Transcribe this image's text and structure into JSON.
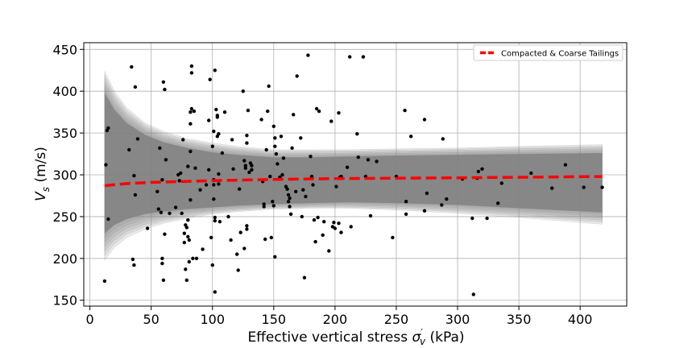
{
  "chart_data": {
    "type": "scatter",
    "title": "",
    "xlabel": "Effective vertical stress σ′v (kPa)",
    "xlabel_parts": {
      "prefix": "Effective vertical stress ",
      "symbol": "σ",
      "superscript": "′",
      "subscript": "v",
      "suffix": " (kPa)"
    },
    "ylabel": "Vs (m/s)",
    "ylabel_parts": {
      "symbol": "V",
      "subscript": "s",
      "suffix": " (m/s)"
    },
    "xlim": [
      -5,
      438
    ],
    "ylim": [
      143,
      458
    ],
    "xticks": [
      0,
      50,
      100,
      150,
      200,
      250,
      300,
      350,
      400
    ],
    "yticks": [
      150,
      200,
      250,
      300,
      350,
      400,
      450
    ],
    "grid": true,
    "legend": {
      "position": "top-right",
      "entries": [
        {
          "label": "Compacted & Coarse Tailings",
          "color": "#ff0000",
          "style": "dashed"
        }
      ]
    },
    "colors": {
      "points": "#000000",
      "band": "#808080",
      "mean": "#ff0000",
      "grid": "#b0b0b0"
    },
    "mean_curve": {
      "x": [
        12,
        30,
        50,
        100,
        150,
        200,
        250,
        300,
        350,
        418
      ],
      "y": [
        287,
        289.5,
        291,
        293,
        294.5,
        295.5,
        296,
        296.5,
        297,
        298
      ]
    },
    "band": {
      "x": [
        12,
        20,
        30,
        45,
        60,
        80,
        100,
        120,
        150,
        180,
        210,
        250,
        300,
        350,
        418
      ],
      "upper_outer": [
        424,
        400,
        380,
        362,
        352,
        343,
        338,
        334,
        330,
        330,
        330,
        331,
        332,
        334,
        336
      ],
      "upper_inner": [
        398,
        378,
        362,
        348,
        339,
        332,
        327,
        324,
        321,
        321,
        322,
        323,
        324,
        325,
        326
      ],
      "lower_inner": [
        230,
        240,
        247,
        253,
        256,
        259,
        261,
        263,
        265,
        266,
        267,
        266,
        264,
        260,
        255
      ],
      "lower_outer": [
        198,
        213,
        225,
        235,
        242,
        248,
        253,
        256,
        259,
        260,
        260,
        258,
        254,
        249,
        241
      ]
    },
    "points": [
      [
        12,
        173
      ],
      [
        13,
        312
      ],
      [
        14,
        353
      ],
      [
        15,
        356
      ],
      [
        15,
        247
      ],
      [
        34,
        429
      ],
      [
        35,
        199
      ],
      [
        36,
        192
      ],
      [
        37,
        405
      ],
      [
        39,
        343
      ],
      [
        32,
        330
      ],
      [
        36,
        299
      ],
      [
        37,
        276
      ],
      [
        47,
        236
      ],
      [
        55,
        280
      ],
      [
        56,
        259
      ],
      [
        57,
        332
      ],
      [
        58,
        255
      ],
      [
        59,
        294
      ],
      [
        59,
        200
      ],
      [
        59,
        194
      ],
      [
        60,
        174
      ],
      [
        60,
        411
      ],
      [
        61,
        402
      ],
      [
        61,
        229
      ],
      [
        62,
        318
      ],
      [
        65,
        254
      ],
      [
        70,
        261
      ],
      [
        72,
        300
      ],
      [
        73,
        293
      ],
      [
        74,
        302
      ],
      [
        75,
        254
      ],
      [
        76,
        342
      ],
      [
        77,
        230
      ],
      [
        77,
        219
      ],
      [
        78,
        240
      ],
      [
        78,
        187
      ],
      [
        79,
        237
      ],
      [
        79,
        174
      ],
      [
        80,
        226
      ],
      [
        80,
        310
      ],
      [
        80,
        246
      ],
      [
        81,
        196
      ],
      [
        81,
        222
      ],
      [
        82,
        270
      ],
      [
        82,
        375
      ],
      [
        82,
        361
      ],
      [
        82,
        328
      ],
      [
        83,
        430
      ],
      [
        83,
        422
      ],
      [
        83,
        379
      ],
      [
        84,
        200
      ],
      [
        85,
        376
      ],
      [
        86,
        308
      ],
      [
        87,
        200
      ],
      [
        90,
        282
      ],
      [
        92,
        211
      ],
      [
        95,
        288
      ],
      [
        97,
        306
      ],
      [
        97,
        365
      ],
      [
        98,
        414
      ],
      [
        99,
        225
      ],
      [
        100,
        192
      ],
      [
        100,
        334
      ],
      [
        101,
        294
      ],
      [
        101,
        271
      ],
      [
        101,
        352
      ],
      [
        101,
        288
      ],
      [
        102,
        425
      ],
      [
        102,
        249
      ],
      [
        102,
        245
      ],
      [
        102,
        160
      ],
      [
        103,
        378
      ],
      [
        104,
        371
      ],
      [
        104,
        369
      ],
      [
        104,
        346
      ],
      [
        105,
        349
      ],
      [
        105,
        301
      ],
      [
        105,
        289
      ],
      [
        106,
        244
      ],
      [
        108,
        326
      ],
      [
        110,
        375
      ],
      [
        113,
        250
      ],
      [
        115,
        222
      ],
      [
        116,
        342
      ],
      [
        117,
        307
      ],
      [
        120,
        205
      ],
      [
        121,
        186
      ],
      [
        122,
        283
      ],
      [
        123,
        231
      ],
      [
        125,
        400
      ],
      [
        126,
        317
      ],
      [
        126,
        212
      ],
      [
        127,
        311
      ],
      [
        127,
        308
      ],
      [
        128,
        347
      ],
      [
        128,
        338
      ],
      [
        128,
        239
      ],
      [
        128,
        235
      ],
      [
        129,
        377
      ],
      [
        130,
        303
      ],
      [
        131,
        314
      ],
      [
        132,
        311
      ],
      [
        132,
        306
      ],
      [
        140,
        366
      ],
      [
        141,
        292
      ],
      [
        142,
        265
      ],
      [
        142,
        262
      ],
      [
        143,
        223
      ],
      [
        144,
        330
      ],
      [
        145,
        376
      ],
      [
        146,
        406
      ],
      [
        147,
        298
      ],
      [
        148,
        225
      ],
      [
        149,
        268
      ],
      [
        150,
        263
      ],
      [
        150,
        358
      ],
      [
        151,
        202
      ],
      [
        151,
        344
      ],
      [
        151,
        334
      ],
      [
        152,
        325
      ],
      [
        153,
        313
      ],
      [
        155,
        297
      ],
      [
        156,
        346
      ],
      [
        157,
        300
      ],
      [
        158,
        320
      ],
      [
        160,
        286
      ],
      [
        161,
        283
      ],
      [
        162,
        276
      ],
      [
        162,
        268
      ],
      [
        163,
        272
      ],
      [
        163,
        262
      ],
      [
        164,
        253
      ],
      [
        165,
        332
      ],
      [
        166,
        372
      ],
      [
        168,
        280
      ],
      [
        169,
        418
      ],
      [
        172,
        344
      ],
      [
        173,
        250
      ],
      [
        174,
        282
      ],
      [
        175,
        177
      ],
      [
        176,
        274
      ],
      [
        178,
        443
      ],
      [
        180,
        322
      ],
      [
        181,
        298
      ],
      [
        182,
        288
      ],
      [
        183,
        246
      ],
      [
        184,
        220
      ],
      [
        185,
        379
      ],
      [
        186,
        249
      ],
      [
        187,
        376
      ],
      [
        190,
        228
      ],
      [
        191,
        244
      ],
      [
        195,
        209
      ],
      [
        197,
        364
      ],
      [
        198,
        238
      ],
      [
        199,
        243
      ],
      [
        200,
        236
      ],
      [
        201,
        286
      ],
      [
        203,
        374
      ],
      [
        203,
        242
      ],
      [
        204,
        297
      ],
      [
        205,
        231
      ],
      [
        205,
        298
      ],
      [
        210,
        309
      ],
      [
        212,
        441
      ],
      [
        213,
        238
      ],
      [
        218,
        349
      ],
      [
        219,
        321
      ],
      [
        223,
        441
      ],
      [
        225,
        298
      ],
      [
        227,
        318
      ],
      [
        229,
        251
      ],
      [
        234,
        316
      ],
      [
        247,
        225
      ],
      [
        250,
        298
      ],
      [
        257,
        377
      ],
      [
        258,
        268
      ],
      [
        258,
        253
      ],
      [
        262,
        346
      ],
      [
        273,
        366
      ],
      [
        273,
        257
      ],
      [
        275,
        278
      ],
      [
        287,
        264
      ],
      [
        288,
        343
      ],
      [
        291,
        271
      ],
      [
        304,
        295
      ],
      [
        312,
        248
      ],
      [
        313,
        157
      ],
      [
        316,
        296
      ],
      [
        317,
        304
      ],
      [
        320,
        307
      ],
      [
        324,
        248
      ],
      [
        333,
        266
      ],
      [
        336,
        290
      ],
      [
        360,
        302
      ],
      [
        377,
        284
      ],
      [
        388,
        312
      ],
      [
        403,
        285
      ],
      [
        418,
        285
      ]
    ]
  }
}
